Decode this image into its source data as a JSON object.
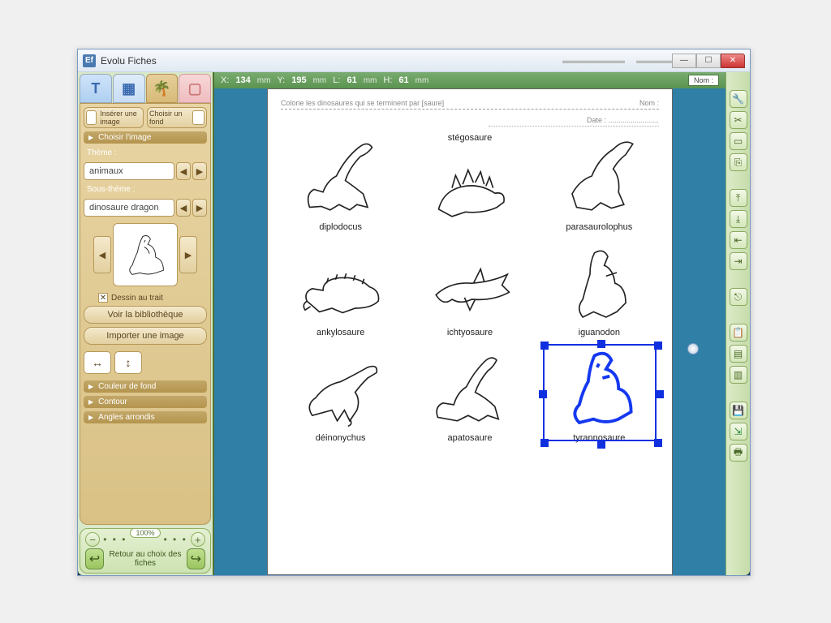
{
  "window": {
    "title": "Evolu Fiches",
    "icon_letter": "Ef"
  },
  "coords": {
    "x": "134",
    "y": "195",
    "l": "61",
    "h": "61",
    "unit": "mm",
    "nom_label": "Nom :",
    "date_label": "Date :"
  },
  "sidebar": {
    "insert_image": "Insérer une image",
    "choose_bg": "Choisir un fond",
    "choose_image_hdr": "Choisir l'image",
    "theme_label": "Thème :",
    "theme_value": "animaux",
    "subtheme_label": "Sous-thème :",
    "subtheme_value": "dinosaure dragon",
    "line_drawing": "Dessin au trait",
    "view_library": "Voir la bibliothèque",
    "import_image": "Importer une image",
    "bg_color_hdr": "Couleur de fond",
    "contour_hdr": "Contour",
    "rounded_hdr": "Angles arrondis"
  },
  "bottom": {
    "zoom_pct": "100%",
    "return_label": "Retour au choix des fiches"
  },
  "page": {
    "instruction": "Colorie les dinosaures qui se terminent par [saure]",
    "nom_label": "Nom :",
    "date_label": "Date : ........................."
  },
  "dinosaurs": [
    {
      "name": "diplodocus"
    },
    {
      "name": "stégosaure"
    },
    {
      "name": "parasaurolophus"
    },
    {
      "name": "ankylosaure"
    },
    {
      "name": "ichtyosaure"
    },
    {
      "name": "iguanodon"
    },
    {
      "name": "déinonychus"
    },
    {
      "name": "apatosaure"
    },
    {
      "name": "tyrannosaure"
    }
  ],
  "selected_index": 8,
  "colors": {
    "panel_tan": "#e0cb96",
    "panel_green": "#d8e8c9",
    "ruler": "#5a9350",
    "canvas_bg": "#2f7fa6",
    "selection": "#1030e0"
  }
}
